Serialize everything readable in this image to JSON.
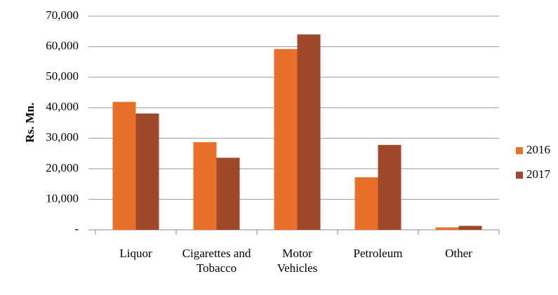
{
  "chart_data": {
    "type": "bar",
    "ylabel": "Rs. Mn.",
    "categories": [
      "Liquor",
      "Cigarettes and Tobacco",
      "Motor Vehicles",
      "Petroleum",
      "Other"
    ],
    "series": [
      {
        "name": "2016",
        "color": "#e8702a",
        "values": [
          41900,
          28700,
          59200,
          17200,
          800
        ]
      },
      {
        "name": "2017",
        "color": "#a0482a",
        "values": [
          38100,
          23600,
          64000,
          27800,
          1300
        ]
      }
    ],
    "ylim": [
      0,
      70000
    ],
    "yticks": [
      {
        "value": 0,
        "label": "-"
      },
      {
        "value": 10000,
        "label": "10,000"
      },
      {
        "value": 20000,
        "label": "20,000"
      },
      {
        "value": 30000,
        "label": "30,000"
      },
      {
        "value": 40000,
        "label": "40,000"
      },
      {
        "value": 50000,
        "label": "50,000"
      },
      {
        "value": 60000,
        "label": "60,000"
      },
      {
        "value": 70000,
        "label": "70,000"
      }
    ],
    "grid": true,
    "legend": "right"
  }
}
